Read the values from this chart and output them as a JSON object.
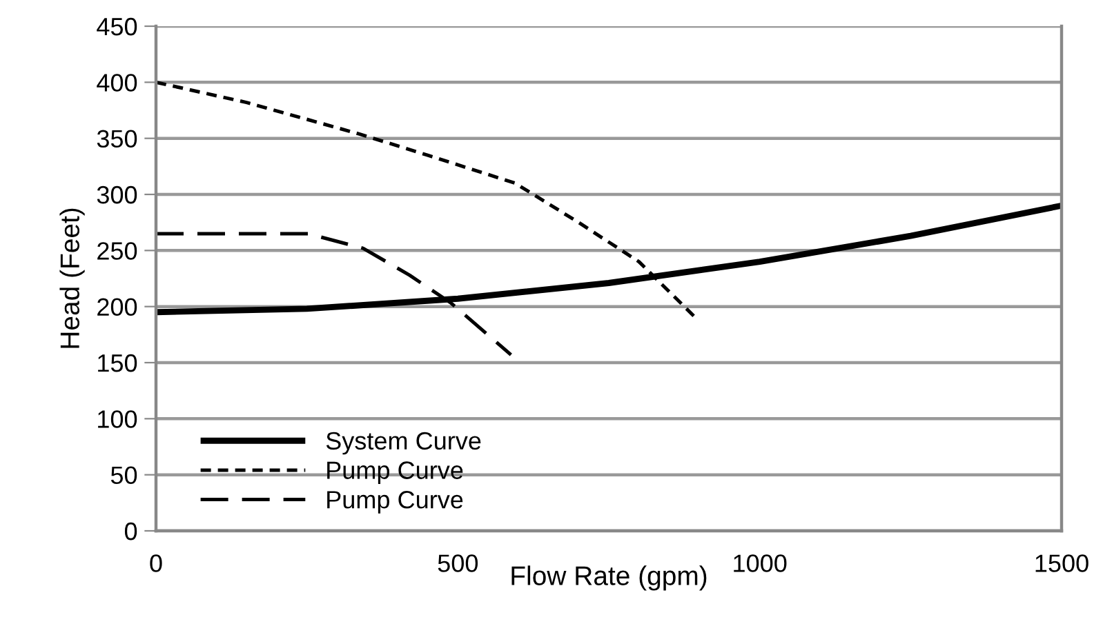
{
  "chart_data": {
    "type": "line",
    "xlabel": "Flow Rate (gpm)",
    "ylabel": "Head (Feet)",
    "xlim": [
      0,
      1500
    ],
    "xticks": [
      0,
      500,
      1000,
      1500
    ],
    "ylim": [
      0,
      450
    ],
    "yticks": [
      0,
      50,
      100,
      150,
      200,
      250,
      300,
      350,
      400,
      450
    ],
    "grid": "y",
    "legend": "bottom left",
    "marker": "none",
    "series": [
      {
        "name": "System Curve",
        "color": "#000000",
        "line_style": "solid",
        "x": [
          0,
          250,
          500,
          750,
          1000,
          1250,
          1500
        ],
        "values": [
          195,
          198,
          207,
          221,
          240,
          263,
          290
        ]
      },
      {
        "name": "Pump Curve",
        "color": "#000000",
        "line_style": "dotted",
        "x": [
          0,
          150,
          336,
          450,
          595,
          700,
          800,
          892
        ],
        "values": [
          400,
          382,
          354,
          335,
          310,
          275,
          240,
          191
        ]
      },
      {
        "name": "Pump Curve",
        "color": "#000000",
        "line_style": "dashed",
        "x": [
          0,
          252,
          343,
          420,
          489,
          588
        ],
        "values": [
          265,
          265,
          252,
          228,
          203,
          157
        ]
      }
    ]
  }
}
